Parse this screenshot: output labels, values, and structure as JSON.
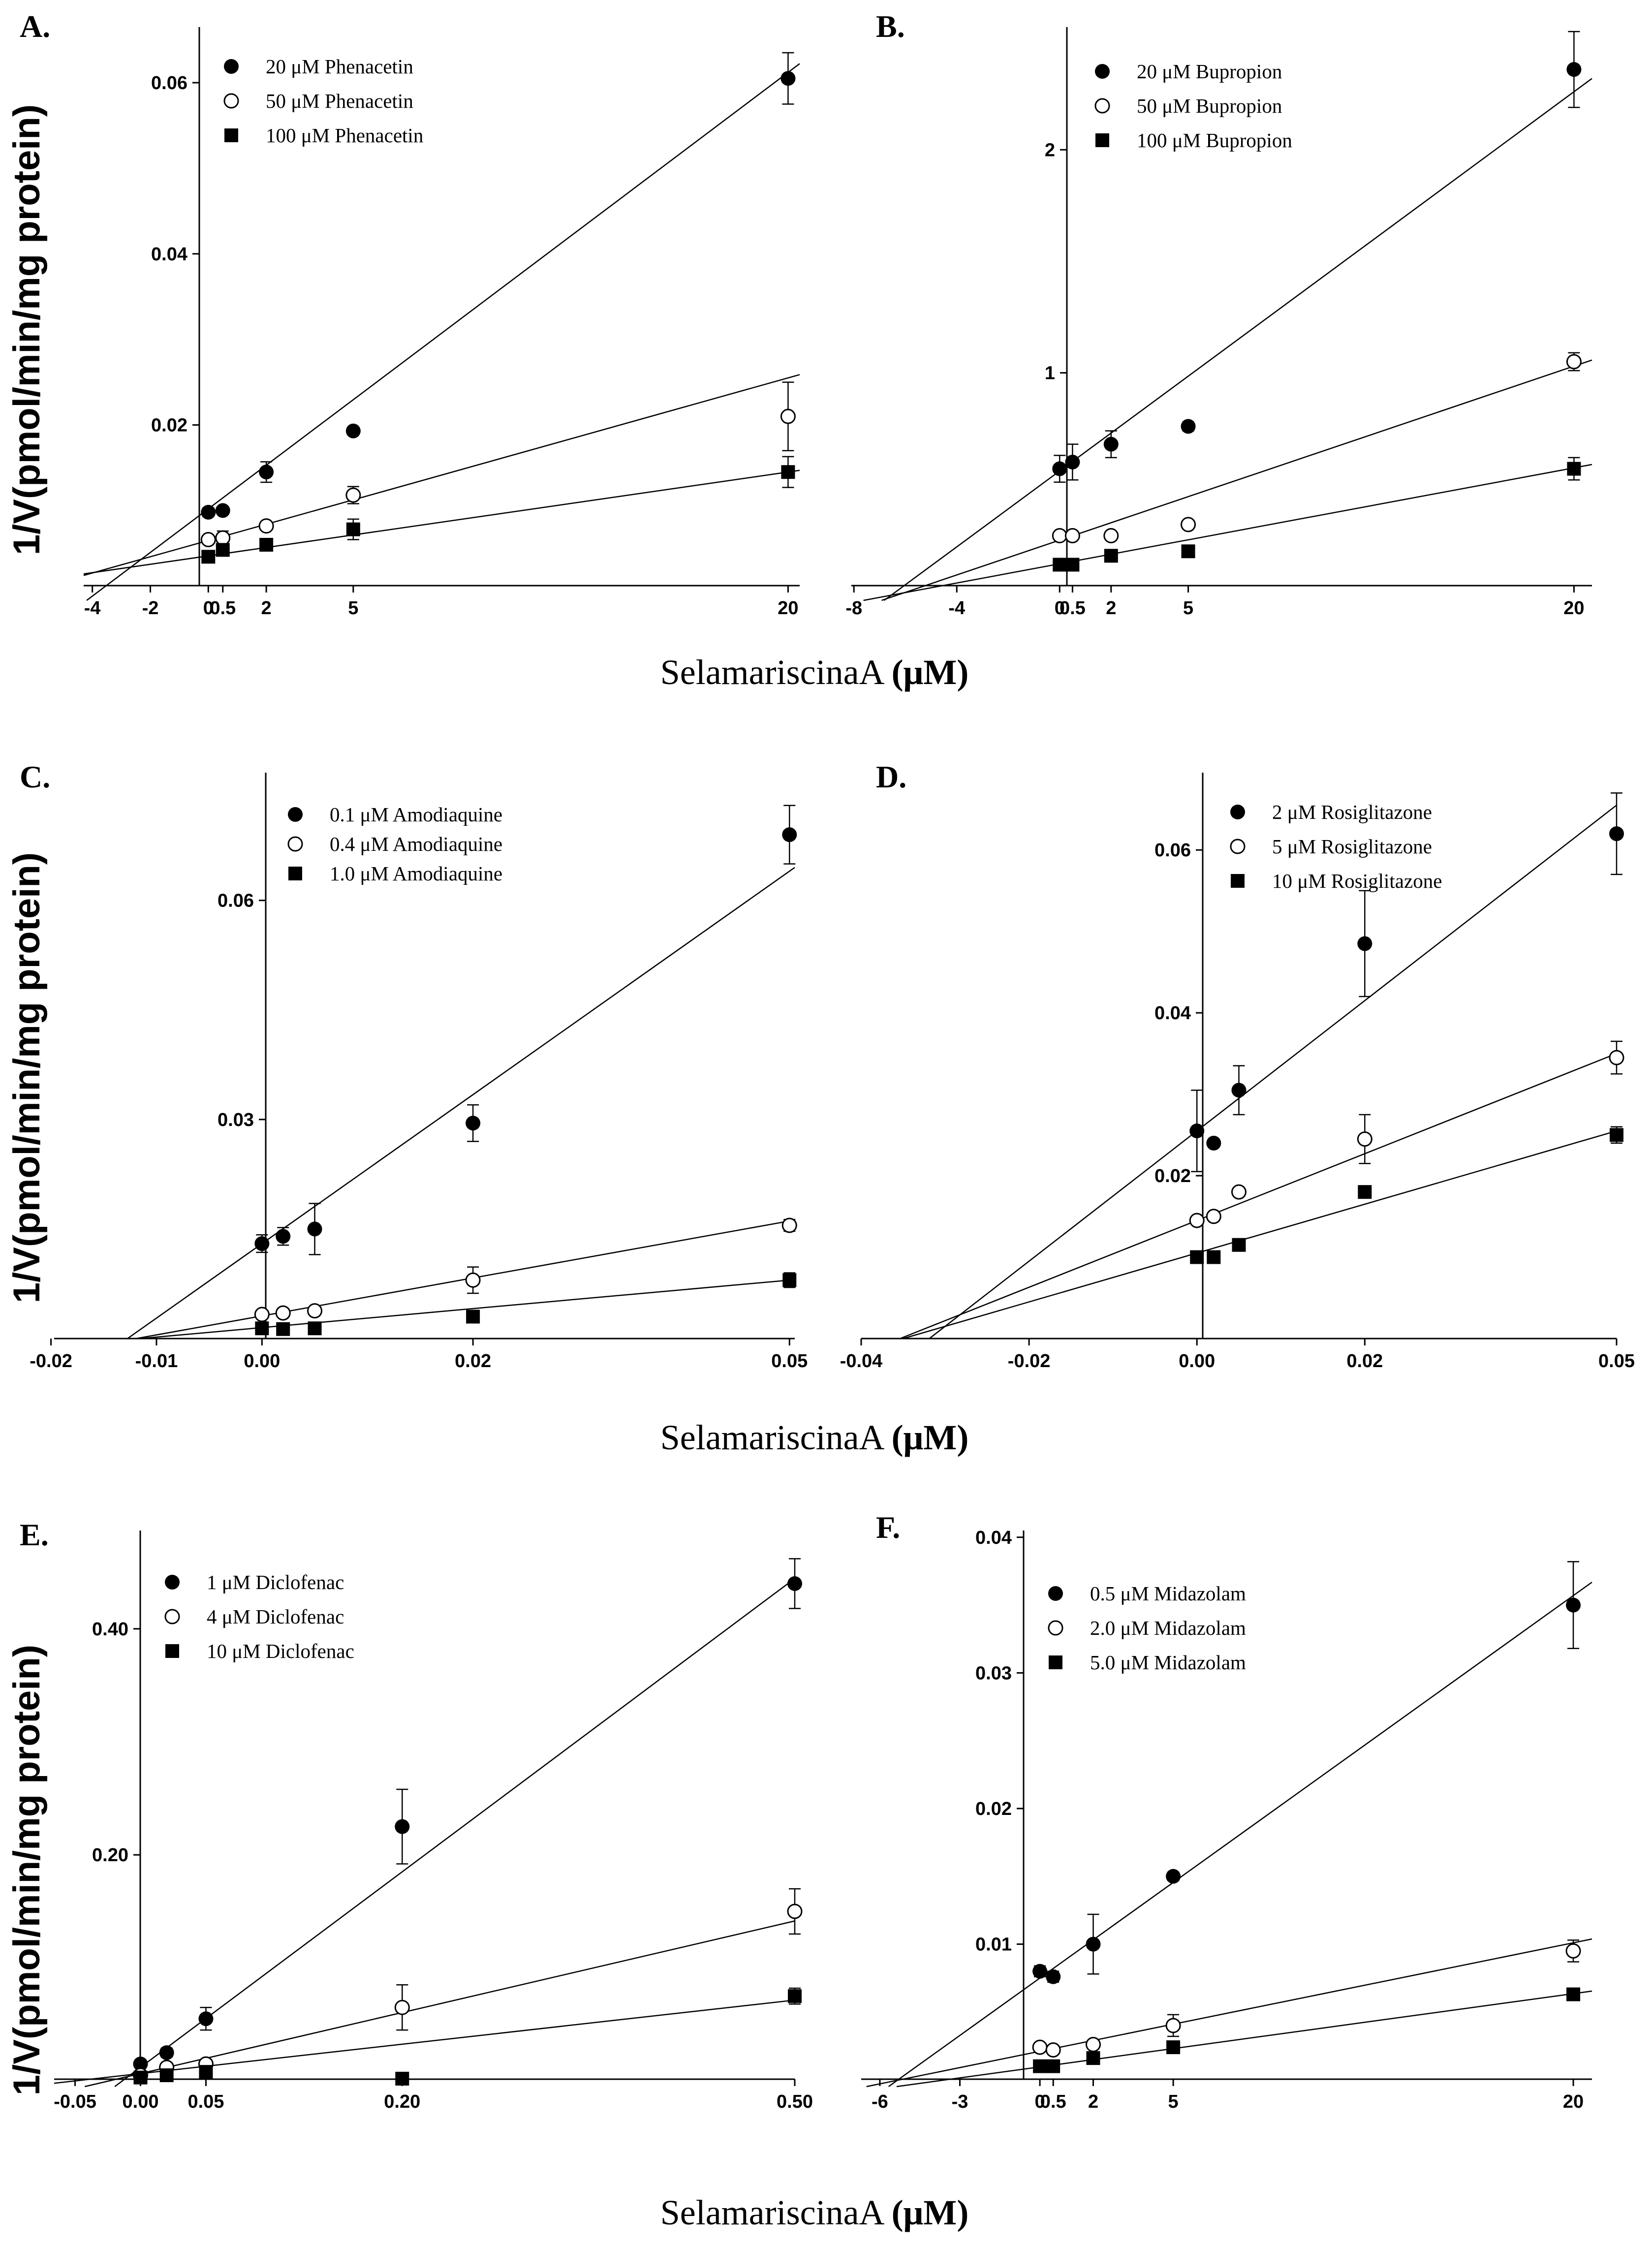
{
  "figure": {
    "ylabel": "1/V(pmol/min/mg protein)",
    "xlabel_prefix": "SelamariscinaA ",
    "xlabel_unit": "(μM)"
  },
  "chart_data": [
    {
      "type": "scatter",
      "panel": "A.",
      "xlabel": "SelamariscinaA (μM)",
      "ylabel": "1/V(pmol/min/mg protein)",
      "xticks": [
        -4,
        -2,
        0,
        0.5,
        2,
        5,
        20
      ],
      "xtick_labels": [
        "-4",
        "-2",
        "0",
        "0.5",
        "2",
        "5",
        "20"
      ],
      "yticks": [
        0.02,
        0.04,
        0.06
      ],
      "ytick_labels": [
        "0.02",
        "0.04",
        "0.06"
      ],
      "xlim": [
        -4.3,
        20.4
      ],
      "ylim": [
        -0.0005,
        0.0665
      ],
      "series": [
        {
          "name": "20 μM Phenacetin",
          "marker": "filled-circle",
          "x": [
            0,
            0.5,
            2,
            5,
            20
          ],
          "y": [
            0.0098,
            0.01,
            0.0145,
            0.0193,
            0.0605
          ],
          "err": [
            0.0005,
            0.0004,
            0.0012,
            0.0003,
            0.003
          ],
          "fit": {
            "slope": 0.00255,
            "intercept": 0.0102
          }
        },
        {
          "name": "50 μM Phenacetin",
          "marker": "open-circle",
          "x": [
            0,
            0.5,
            2,
            5,
            20
          ],
          "y": [
            0.0066,
            0.0068,
            0.0082,
            0.0118,
            0.021
          ],
          "err": [
            0.0004,
            0.0008,
            0.0004,
            0.001,
            0.004
          ],
          "fit": {
            "slope": 0.00095,
            "intercept": 0.0065
          }
        },
        {
          "name": "100 μM Phenacetin",
          "marker": "filled-square",
          "x": [
            0,
            0.5,
            2,
            5,
            20
          ],
          "y": [
            0.0046,
            0.0054,
            0.006,
            0.0078,
            0.0145
          ],
          "err": [
            0.0003,
            0.0003,
            0.0003,
            0.0012,
            0.0018
          ],
          "fit": {
            "slope": 0.00049,
            "intercept": 0.0047
          }
        }
      ]
    },
    {
      "type": "scatter",
      "panel": "B.",
      "xlabel": "SelamariscinaA (μM)",
      "ylabel": "1/V(pmol/min/mg protein)",
      "xticks": [
        -8,
        -4,
        0,
        0.5,
        2,
        5,
        20
      ],
      "xtick_labels": [
        "-8",
        "-4",
        "0",
        "0.5",
        "2",
        "5",
        "20"
      ],
      "yticks": [
        1,
        2
      ],
      "ytick_labels": [
        "1",
        "2"
      ],
      "xlim": [
        -8.1,
        20.7
      ],
      "ylim": [
        -0.02,
        2.55
      ],
      "series": [
        {
          "name": "20 μM Bupropion",
          "marker": "filled-circle",
          "x": [
            0,
            0.5,
            2,
            5,
            20
          ],
          "y": [
            0.57,
            0.6,
            0.68,
            0.76,
            2.36
          ],
          "err": [
            0.06,
            0.08,
            0.06,
            0.02,
            0.17
          ],
          "fit": {
            "slope": 0.085,
            "intercept": 0.56
          }
        },
        {
          "name": "50 μM Bupropion",
          "marker": "open-circle",
          "x": [
            0,
            0.5,
            2,
            5,
            20
          ],
          "y": [
            0.27,
            0.27,
            0.27,
            0.32,
            1.05
          ],
          "err": [
            0.01,
            0.01,
            0.01,
            0.01,
            0.04
          ],
          "fit": {
            "slope": 0.039,
            "intercept": 0.25
          }
        },
        {
          "name": "100 μM Bupropion",
          "marker": "filled-square",
          "x": [
            0,
            0.5,
            2,
            5,
            20
          ],
          "y": [
            0.14,
            0.14,
            0.18,
            0.2,
            0.57
          ],
          "err": [
            0.01,
            0.01,
            0.01,
            0.02,
            0.05
          ],
          "fit": {
            "slope": 0.0215,
            "intercept": 0.144
          }
        }
      ]
    },
    {
      "type": "scatter",
      "panel": "C.",
      "xlabel": "SelamariscinaA (μM)",
      "ylabel": "1/V(pmol/min/mg protein)",
      "xticks": [
        -0.02,
        -0.01,
        0.0,
        0.02,
        0.05
      ],
      "xtick_labels": [
        "-0.02",
        "-0.01",
        "0.00",
        "0.02",
        "0.05"
      ],
      "yticks": [
        0.03,
        0.06
      ],
      "ytick_labels": [
        "0.03",
        "0.06"
      ],
      "xlim": [
        -0.0197,
        0.0505
      ],
      "ylim": [
        0,
        0.0775
      ],
      "series": [
        {
          "name": "0.1 μM Amodiaquine",
          "marker": "filled-circle",
          "x": [
            0.0,
            0.002,
            0.005,
            0.02,
            0.05
          ],
          "y": [
            0.013,
            0.014,
            0.015,
            0.0295,
            0.069
          ],
          "err": [
            0.0012,
            0.0012,
            0.0035,
            0.0025,
            0.004
          ],
          "fit": {
            "slope": 1.02,
            "intercept": 0.013
          }
        },
        {
          "name": "0.4 μM Amodiaquine",
          "marker": "open-circle",
          "x": [
            0.0,
            0.002,
            0.005,
            0.02,
            0.05
          ],
          "y": [
            0.0033,
            0.0035,
            0.0038,
            0.008,
            0.0155
          ],
          "err": [
            0.0004,
            0.0004,
            0.0004,
            0.0018,
            0.0008
          ],
          "fit": {
            "slope": 0.26,
            "intercept": 0.0031
          }
        },
        {
          "name": "1.0 μM Amodiaquine",
          "marker": "filled-square",
          "x": [
            0.0,
            0.002,
            0.005,
            0.02,
            0.05
          ],
          "y": [
            0.0014,
            0.0013,
            0.0014,
            0.003,
            0.008
          ],
          "err": [
            0.0002,
            0.0002,
            0.0002,
            0.0003,
            0.001
          ],
          "fit": {
            "slope": 0.13,
            "intercept": 0.0015
          }
        }
      ]
    },
    {
      "type": "scatter",
      "panel": "D.",
      "xlabel": "SelamariscinaA (μM)",
      "ylabel": "1/V(pmol/min/mg protein)",
      "xticks": [
        -0.04,
        -0.02,
        0.0,
        0.02,
        0.05
      ],
      "xtick_labels": [
        "-0.04",
        "-0.02",
        "0.00",
        "0.02",
        "0.05"
      ],
      "yticks": [
        0.02,
        0.04,
        0.06
      ],
      "ytick_labels": [
        "0.02",
        "0.04",
        "0.06"
      ],
      "xlim": [
        -0.04,
        0.05
      ],
      "ylim": [
        0,
        0.0695
      ],
      "series": [
        {
          "name": "2 μM Rosiglitazone",
          "marker": "filled-circle",
          "x": [
            0.0,
            0.002,
            0.005,
            0.02,
            0.05
          ],
          "y": [
            0.0255,
            0.024,
            0.0305,
            0.0485,
            0.062
          ],
          "err": [
            0.005,
            0.0005,
            0.003,
            0.0065,
            0.005
          ],
          "fit": {
            "slope": 0.8,
            "intercept": 0.0255
          }
        },
        {
          "name": "5 μM Rosiglitazone",
          "marker": "open-circle",
          "x": [
            0.0,
            0.002,
            0.005,
            0.02,
            0.05
          ],
          "y": [
            0.0145,
            0.015,
            0.018,
            0.0245,
            0.0345
          ],
          "err": [
            0.0005,
            0.0005,
            0.0005,
            0.003,
            0.002
          ],
          "fit": {
            "slope": 0.41,
            "intercept": 0.0145
          }
        },
        {
          "name": "10 μM Rosiglitazone",
          "marker": "filled-square",
          "x": [
            0.0,
            0.002,
            0.005,
            0.02,
            0.05
          ],
          "y": [
            0.01,
            0.01,
            0.0115,
            0.018,
            0.025
          ],
          "err": [
            0.0004,
            0.0004,
            0.0004,
            0.0005,
            0.001
          ],
          "fit": {
            "slope": 0.3,
            "intercept": 0.0105
          }
        }
      ]
    },
    {
      "type": "scatter",
      "panel": "E.",
      "xlabel": "SelamariscinaA (μM)",
      "ylabel": "1/V(pmol/min/mg protein)",
      "xticks": [
        -0.05,
        0.0,
        0.05,
        0.2,
        0.5
      ],
      "xtick_labels": [
        "-0.05",
        "0.00",
        "0.05",
        "0.20",
        "0.50"
      ],
      "yticks": [
        0.2,
        0.4
      ],
      "ytick_labels": [
        "0.20",
        "0.40"
      ],
      "xlim": [
        -0.066,
        0.5
      ],
      "ylim": [
        -0.005,
        0.487
      ],
      "series": [
        {
          "name": "1 μM Diclofenac",
          "marker": "filled-circle",
          "x": [
            0.0,
            0.02,
            0.05,
            0.2,
            0.5
          ],
          "y": [
            0.015,
            0.025,
            0.055,
            0.225,
            0.44
          ],
          "err": [
            0.003,
            0.004,
            0.01,
            0.033,
            0.022
          ],
          "fit": {
            "slope": 0.865,
            "intercept": 0.012
          }
        },
        {
          "name": "4 μM Diclofenac",
          "marker": "open-circle",
          "x": [
            0.0,
            0.02,
            0.05,
            0.2,
            0.5
          ],
          "y": [
            0.005,
            0.012,
            0.015,
            0.065,
            0.15
          ],
          "err": [
            0.003,
            0.004,
            0.004,
            0.02,
            0.02
          ],
          "fit": {
            "slope": 0.27,
            "intercept": 0.0065
          }
        },
        {
          "name": "10 μM Diclofenac",
          "marker": "filled-square",
          "x": [
            0.0,
            0.02,
            0.05,
            0.2,
            0.5
          ],
          "y": [
            0.003,
            0.005,
            0.008,
            0.002,
            0.075
          ],
          "err": [
            0.002,
            0.002,
            0.002,
            0.002,
            0.007
          ],
          "fit": {
            "slope": 0.13,
            "intercept": 0.0065
          }
        }
      ]
    },
    {
      "type": "scatter",
      "panel": "F.",
      "xlabel": "SelamariscinaA (μM)",
      "ylabel": "1/V(pmol/min/mg protein)",
      "xticks": [
        -6,
        -3,
        0,
        0.5,
        2,
        5,
        20
      ],
      "xtick_labels": [
        "-6",
        "-3",
        "0",
        "0.5",
        "2",
        "5",
        "20"
      ],
      "yticks": [
        0.01,
        0.02,
        0.03,
        0.04
      ],
      "ytick_labels": [
        "0.01",
        "0.02",
        "0.03",
        "0.04"
      ],
      "xlim": [
        -6.7,
        20.7
      ],
      "ylim": [
        -0.0005,
        0.0405
      ],
      "series": [
        {
          "name": "0.5 μM Midazolam",
          "marker": "filled-circle",
          "x": [
            0,
            0.5,
            2,
            5,
            20
          ],
          "y": [
            0.008,
            0.0076,
            0.01,
            0.015,
            0.035
          ],
          "err": [
            0.0004,
            0.0004,
            0.0022,
            0.0003,
            0.0032
          ],
          "fit": {
            "slope": 0.00141,
            "intercept": 0.0075
          }
        },
        {
          "name": "2.0 μM Midazolam",
          "marker": "open-circle",
          "x": [
            0,
            0.5,
            2,
            5,
            20
          ],
          "y": [
            0.0024,
            0.0022,
            0.0026,
            0.004,
            0.0095
          ],
          "err": [
            0.0003,
            0.0003,
            0.0003,
            0.0008,
            0.0008
          ],
          "fit": {
            "slope": 0.0004,
            "intercept": 0.0021
          }
        },
        {
          "name": "5.0 μM Midazolam",
          "marker": "filled-square",
          "x": [
            0,
            0.5,
            2,
            5,
            20
          ],
          "y": [
            0.001,
            0.001,
            0.0016,
            0.0024,
            0.0063
          ],
          "err": [
            0.0002,
            0.0002,
            0.0002,
            0.0002,
            0.0003
          ],
          "fit": {
            "slope": 0.00027,
            "intercept": 0.00095
          }
        }
      ]
    }
  ]
}
